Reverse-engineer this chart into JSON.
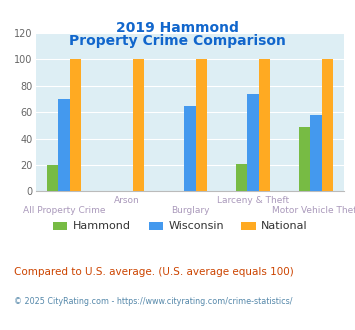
{
  "title_line1": "2019 Hammond",
  "title_line2": "Property Crime Comparison",
  "categories": [
    "All Property Crime",
    "Arson",
    "Burglary",
    "Larceny & Theft",
    "Motor Vehicle Theft"
  ],
  "hammond": [
    20,
    0,
    0,
    21,
    49
  ],
  "wisconsin": [
    70,
    0,
    65,
    74,
    58
  ],
  "national": [
    100,
    100,
    100,
    100,
    100
  ],
  "hammond_color": "#77bb44",
  "wisconsin_color": "#4499ee",
  "national_color": "#ffaa22",
  "ylim": [
    0,
    120
  ],
  "yticks": [
    0,
    20,
    40,
    60,
    80,
    100,
    120
  ],
  "bg_color": "#ddeef4",
  "title_color": "#1166cc",
  "xlabel_color": "#aa99bb",
  "footer_text": "Compared to U.S. average. (U.S. average equals 100)",
  "footer_color": "#cc4400",
  "credit_text": "© 2025 CityRating.com - https://www.cityrating.com/crime-statistics/",
  "credit_color": "#5588aa",
  "legend_labels": [
    "Hammond",
    "Wisconsin",
    "National"
  ],
  "bar_width": 0.18,
  "x_positions": [
    0,
    1,
    2,
    3,
    4
  ],
  "labels_upper": [
    [
      1,
      "Arson"
    ],
    [
      3,
      "Larceny & Theft"
    ]
  ],
  "labels_lower": [
    [
      0,
      "All Property Crime"
    ],
    [
      2,
      "Burglary"
    ],
    [
      4,
      "Motor Vehicle Theft"
    ]
  ]
}
